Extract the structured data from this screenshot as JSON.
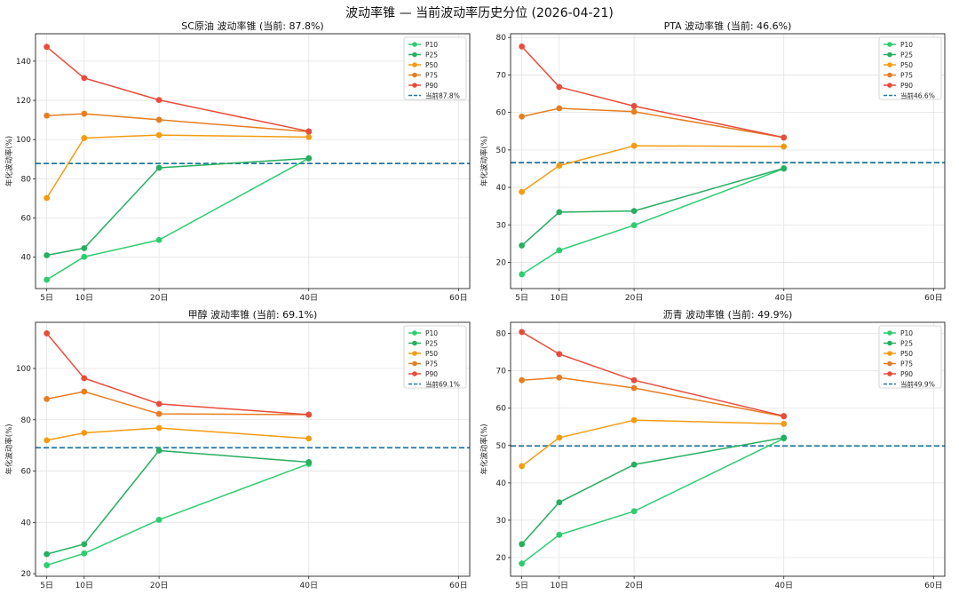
{
  "title": "波动率锥 — 当前波动率历史分位 (2026-04-21)",
  "colors": {
    "P10": "#2ecc71",
    "P25": "#27ae60",
    "P50": "#f39c12",
    "P75": "#e67e22",
    "P90": "#e74c3c",
    "current": "#1f78a8"
  },
  "chart_data": [
    {
      "type": "line",
      "title": "SC原油 波动率锥 (当前: 87.8%)",
      "ylabel": "年化波动率(%)",
      "x": [
        5,
        10,
        20,
        40
      ],
      "xticks": [
        5,
        10,
        20,
        40,
        60
      ],
      "xticklabels": [
        "5日",
        "10日",
        "20日",
        "40日",
        "60日"
      ],
      "xlim": [
        3.5,
        61.5
      ],
      "ylim": [
        24,
        154
      ],
      "yticks": [
        40,
        60,
        80,
        100,
        120,
        140
      ],
      "series": [
        {
          "name": "P10",
          "values": [
            28.5,
            40.2,
            48.8,
            90.5
          ]
        },
        {
          "name": "P25",
          "values": [
            41.0,
            44.6,
            85.6,
            90.4
          ]
        },
        {
          "name": "P50",
          "values": [
            70.2,
            100.8,
            102.3,
            101.3
          ]
        },
        {
          "name": "P75",
          "values": [
            112.2,
            113.2,
            110.1,
            104.0
          ]
        },
        {
          "name": "P90",
          "values": [
            147.3,
            131.4,
            120.2,
            104.2
          ]
        }
      ],
      "current": 87.8,
      "current_label": "当前87.8%"
    },
    {
      "type": "line",
      "title": "PTA 波动率锥 (当前: 46.6%)",
      "ylabel": "年化波动率(%)",
      "x": [
        5,
        10,
        20,
        40
      ],
      "xticks": [
        5,
        10,
        20,
        40,
        60
      ],
      "xticklabels": [
        "5日",
        "10日",
        "20日",
        "40日",
        "60日"
      ],
      "xlim": [
        3.5,
        61.5
      ],
      "ylim": [
        13,
        81
      ],
      "yticks": [
        20,
        30,
        40,
        50,
        60,
        70,
        80
      ],
      "series": [
        {
          "name": "P10",
          "values": [
            16.8,
            23.2,
            29.9,
            45.0
          ]
        },
        {
          "name": "P25",
          "values": [
            24.5,
            33.4,
            33.7,
            45.1
          ]
        },
        {
          "name": "P50",
          "values": [
            38.8,
            45.8,
            51.1,
            50.9
          ]
        },
        {
          "name": "P75",
          "values": [
            58.9,
            61.1,
            60.2,
            53.3
          ]
        },
        {
          "name": "P90",
          "values": [
            77.6,
            66.8,
            61.7,
            53.3
          ]
        }
      ],
      "current": 46.6,
      "current_label": "当前46.6%"
    },
    {
      "type": "line",
      "title": "甲醇 波动率锥 (当前: 69.1%)",
      "ylabel": "年化波动率(%)",
      "x": [
        5,
        10,
        20,
        40
      ],
      "xticks": [
        5,
        10,
        20,
        40,
        60
      ],
      "xticklabels": [
        "5日",
        "10日",
        "20日",
        "40日",
        "60日"
      ],
      "xlim": [
        3.5,
        61.5
      ],
      "ylim": [
        19,
        118
      ],
      "yticks": [
        20,
        40,
        60,
        80,
        100
      ],
      "series": [
        {
          "name": "P10",
          "values": [
            23.3,
            27.9,
            41.0,
            62.8
          ]
        },
        {
          "name": "P25",
          "values": [
            27.6,
            31.5,
            68.0,
            63.5
          ]
        },
        {
          "name": "P50",
          "values": [
            72.0,
            74.9,
            76.8,
            72.7
          ]
        },
        {
          "name": "P75",
          "values": [
            88.1,
            91.0,
            82.3,
            82.0
          ]
        },
        {
          "name": "P90",
          "values": [
            113.7,
            96.2,
            86.2,
            82.0
          ]
        }
      ],
      "current": 69.1,
      "current_label": "当前69.1%"
    },
    {
      "type": "line",
      "title": "沥青 波动率锥 (当前: 49.9%)",
      "ylabel": "年化波动率(%)",
      "x": [
        5,
        10,
        20,
        40
      ],
      "xticks": [
        5,
        10,
        20,
        40,
        60
      ],
      "xticklabels": [
        "5日",
        "10日",
        "20日",
        "40日",
        "60日"
      ],
      "xlim": [
        3.5,
        61.5
      ],
      "ylim": [
        15,
        83
      ],
      "yticks": [
        20,
        30,
        40,
        50,
        60,
        70,
        80
      ],
      "series": [
        {
          "name": "P10",
          "values": [
            18.4,
            26.1,
            32.4,
            51.9
          ]
        },
        {
          "name": "P25",
          "values": [
            23.6,
            34.8,
            44.9,
            52.1
          ]
        },
        {
          "name": "P50",
          "values": [
            44.5,
            52.1,
            56.8,
            55.8
          ]
        },
        {
          "name": "P75",
          "values": [
            67.5,
            68.2,
            65.4,
            57.8
          ]
        },
        {
          "name": "P90",
          "values": [
            80.4,
            74.5,
            67.5,
            57.9
          ]
        }
      ],
      "current": 49.9,
      "current_label": "当前49.9%"
    }
  ]
}
